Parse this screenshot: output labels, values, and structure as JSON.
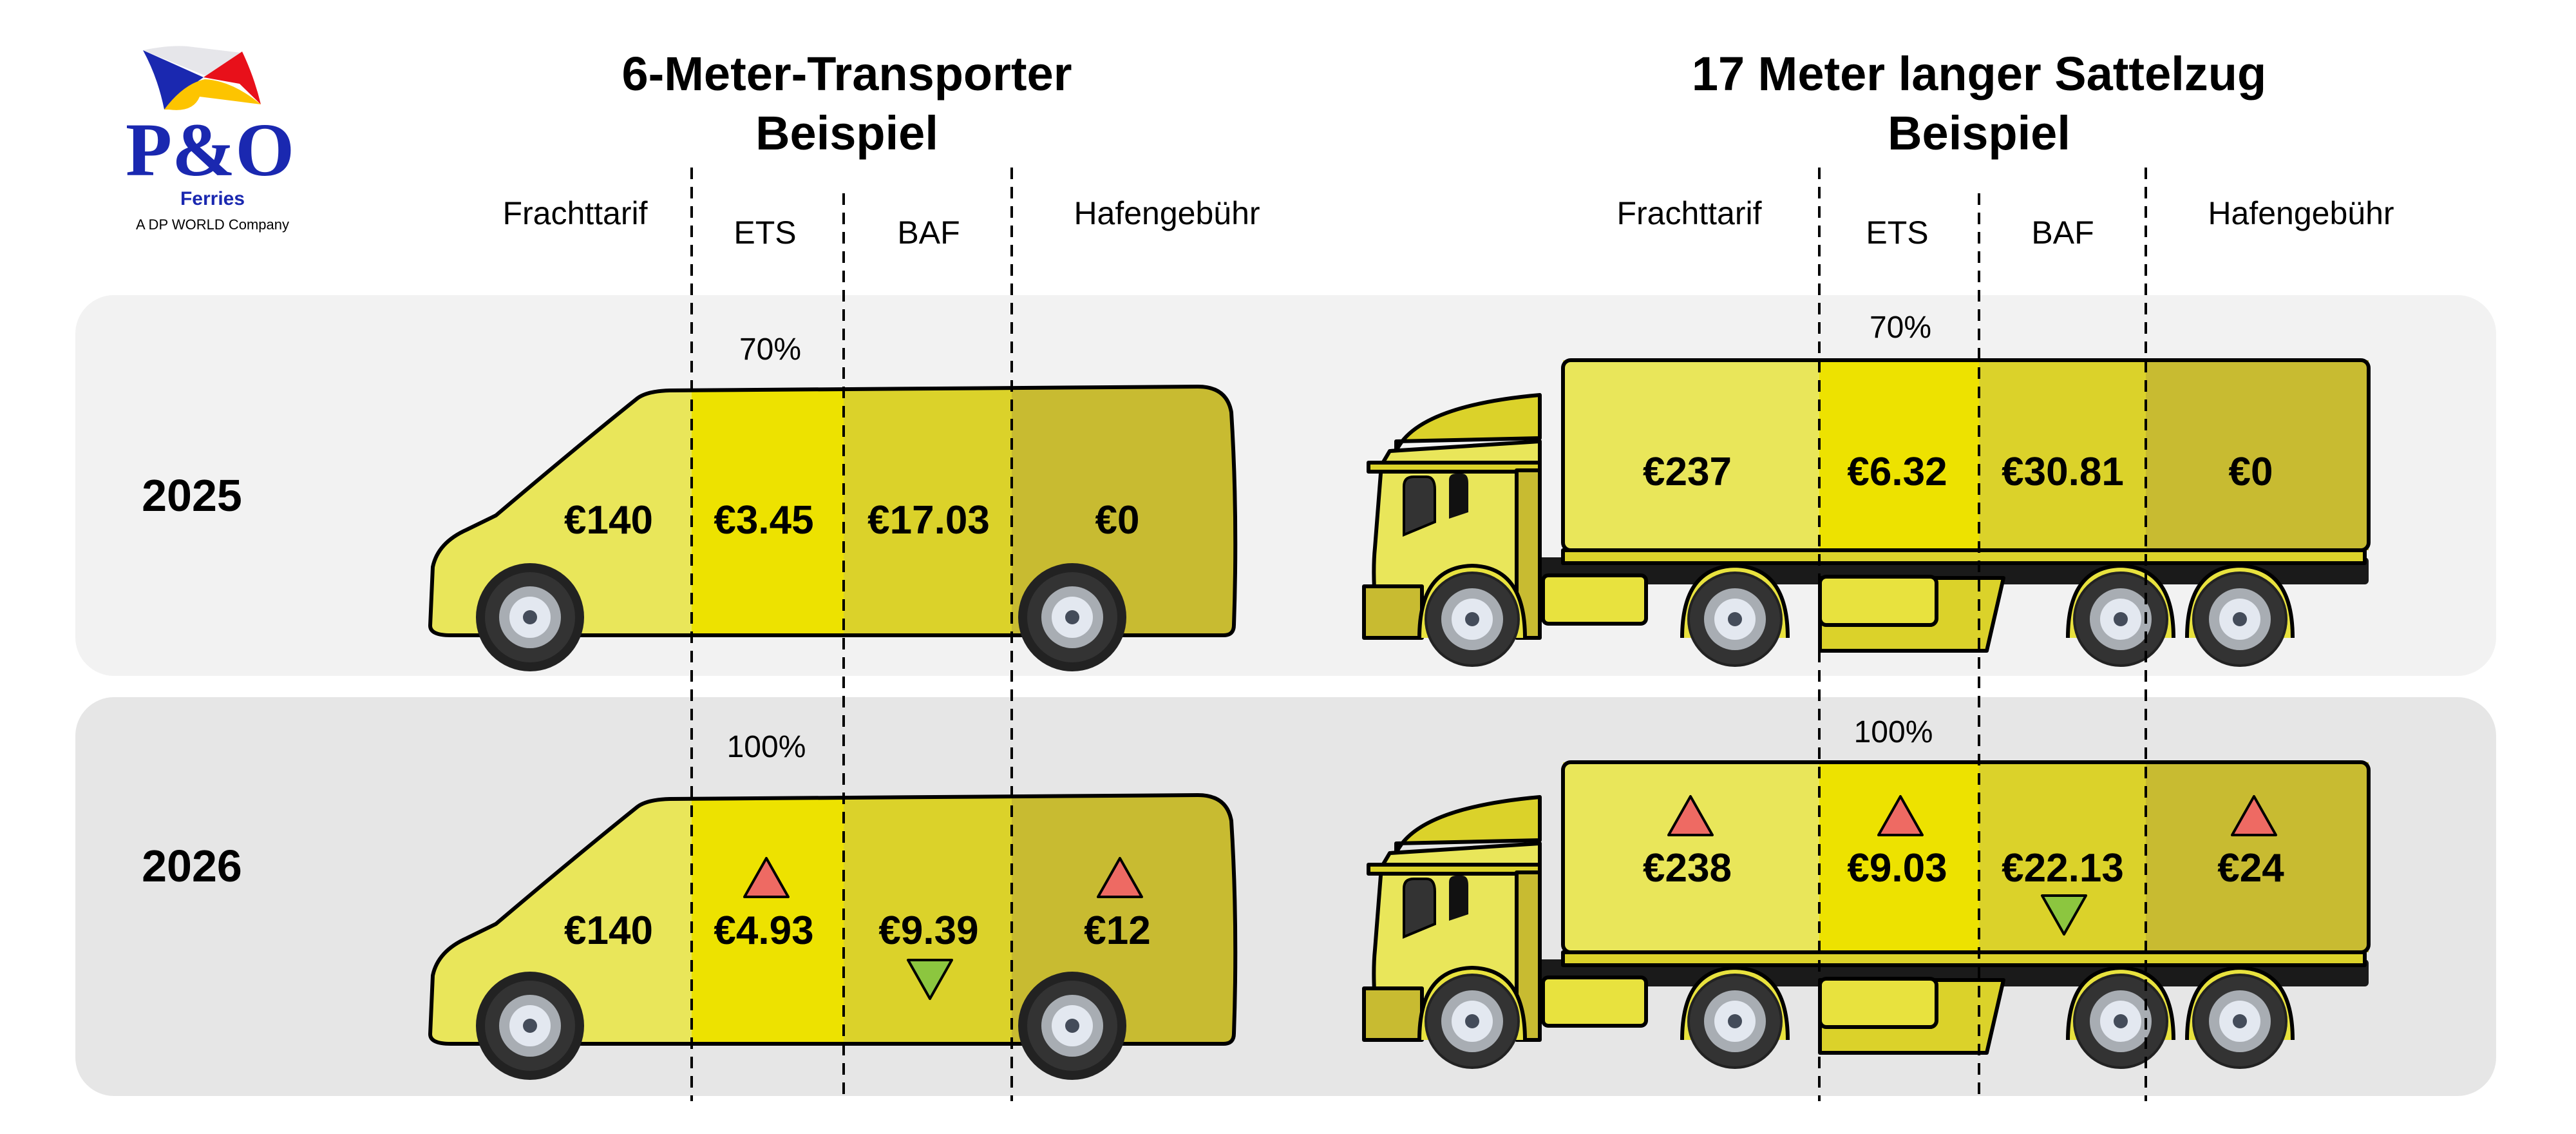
{
  "logo": {
    "brand": "P&O",
    "sub": "Ferries",
    "tagline": "A DP WORLD Company"
  },
  "colors": {
    "frachttarif": "#e9e65a",
    "ets": "#ede200",
    "baf": "#dbd22a",
    "hafen": "#c8bb31",
    "increase": "#ee6a63",
    "decrease": "#8cc63f",
    "panel_2025": "#f2f2f2",
    "panel_2026": "#e6e6e6"
  },
  "van": {
    "title_line1": "6-Meter-Transporter",
    "title_line2": "Beispiel",
    "columns": [
      "Frachttarif",
      "ETS",
      "BAF",
      "Hafengebühr"
    ],
    "rows": [
      {
        "year": "2025",
        "ets_share": "70%",
        "values": [
          "€140",
          "€3.45",
          "€17.03",
          "€0"
        ],
        "changes": [
          "none",
          "none",
          "none",
          "none"
        ]
      },
      {
        "year": "2026",
        "ets_share": "100%",
        "values": [
          "€140",
          "€4.93",
          "€9.39",
          "€12"
        ],
        "changes": [
          "none",
          "up",
          "down",
          "up"
        ]
      }
    ]
  },
  "truck": {
    "title_line1": "17 Meter langer Sattelzug",
    "title_line2": "Beispiel",
    "columns": [
      "Frachttarif",
      "ETS",
      "BAF",
      "Hafengebühr"
    ],
    "rows": [
      {
        "year": "2025",
        "ets_share": "70%",
        "values": [
          "€237",
          "€6.32",
          "€30.81",
          "€0"
        ],
        "changes": [
          "none",
          "none",
          "none",
          "none"
        ]
      },
      {
        "year": "2026",
        "ets_share": "100%",
        "values": [
          "€238",
          "€9.03",
          "€22.13",
          "€24"
        ],
        "changes": [
          "up",
          "up",
          "down",
          "up"
        ]
      }
    ]
  }
}
